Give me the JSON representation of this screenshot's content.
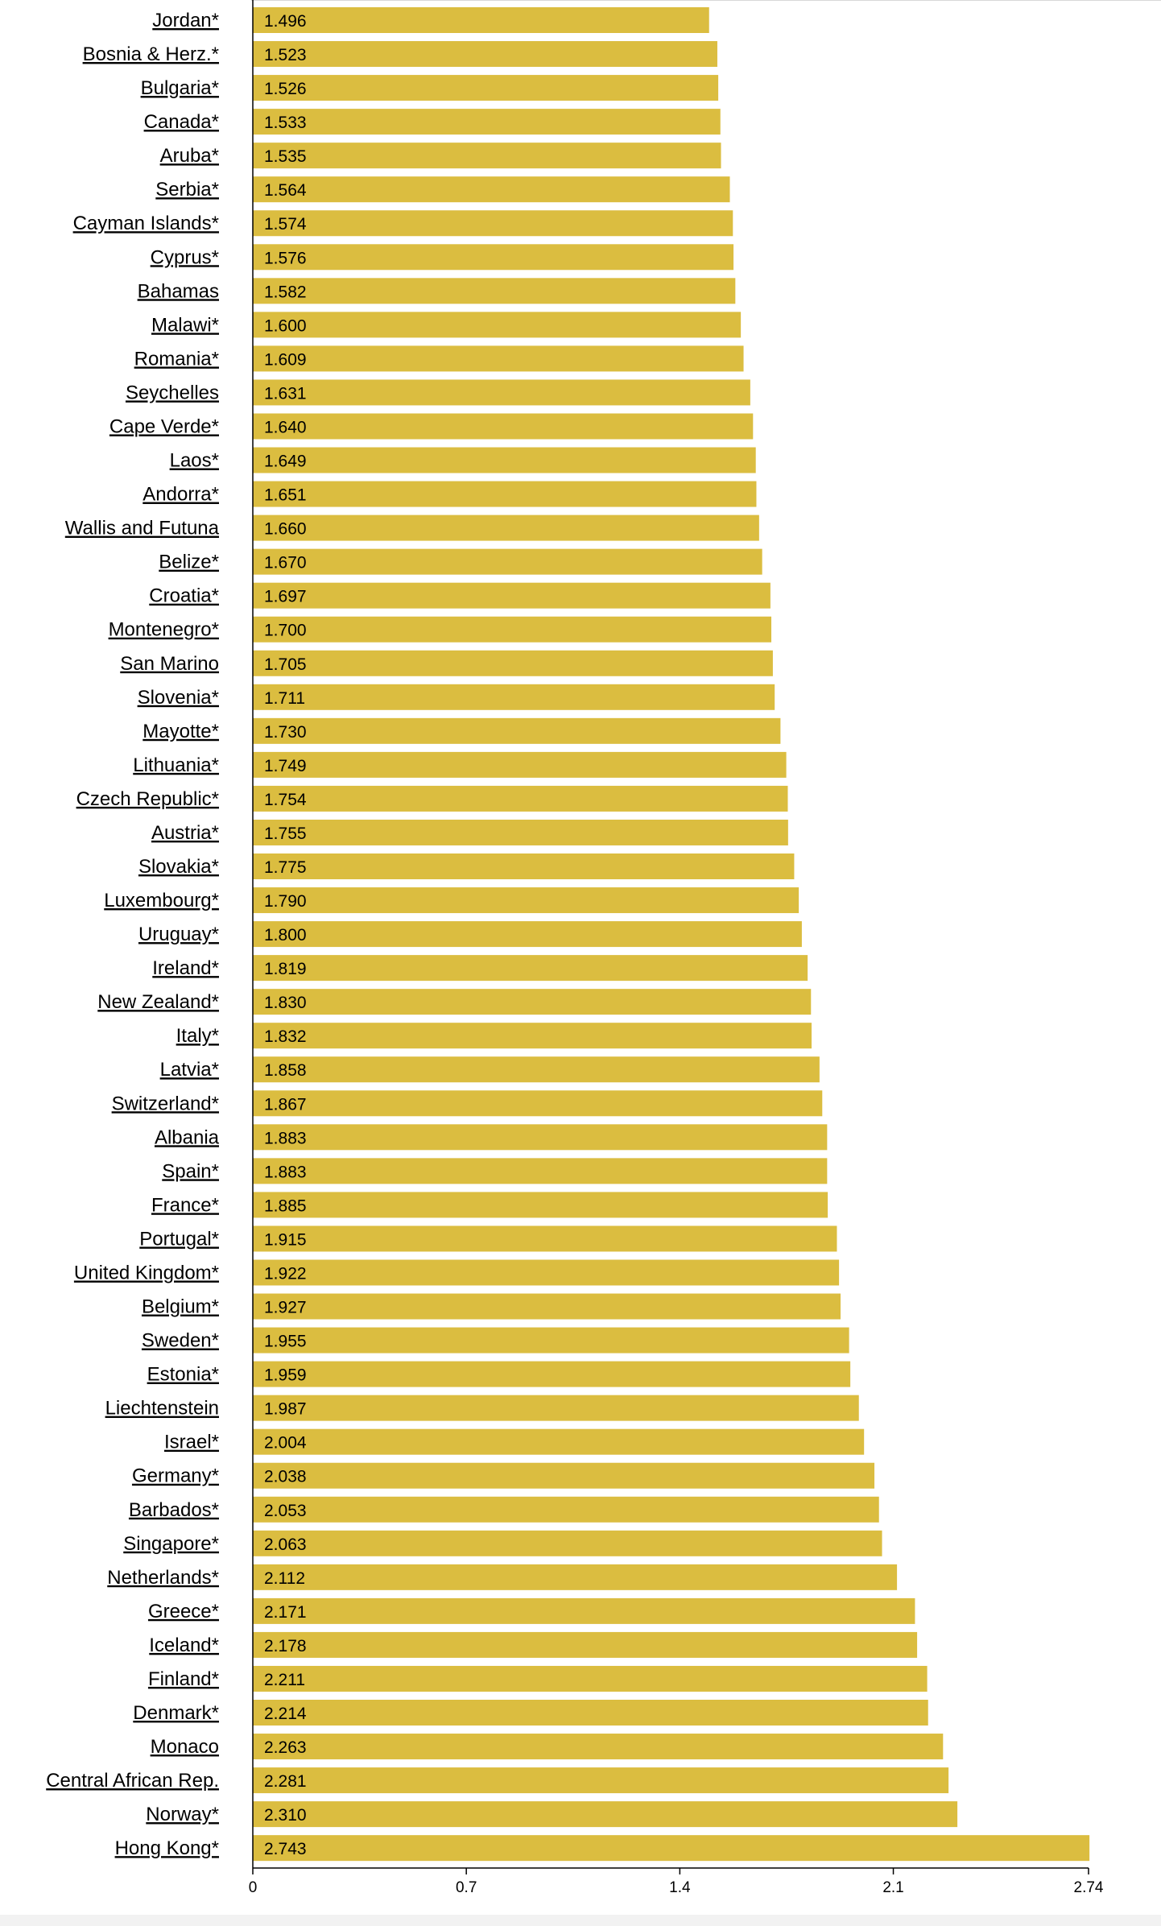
{
  "chart_data": {
    "type": "bar",
    "orientation": "horizontal",
    "title": "",
    "xlabel": "",
    "ylabel": "",
    "bar_color": "#dbbd40",
    "xlim": [
      0,
      2.74
    ],
    "xticks": [
      0,
      0.7,
      1.4,
      2.1,
      2.74
    ],
    "xtick_labels": [
      "0",
      "0.7",
      "1.4",
      "2.1",
      "2.74"
    ],
    "categories": [
      "Jordan*",
      "Bosnia & Herz.*",
      "Bulgaria*",
      "Canada*",
      "Aruba*",
      "Serbia*",
      "Cayman Islands*",
      "Cyprus*",
      "Bahamas ",
      "Malawi*",
      "Romania*",
      "Seychelles ",
      "Cape Verde*",
      "Laos*",
      "Andorra*",
      "Wallis and Futuna ",
      "Belize*",
      "Croatia*",
      "Montenegro*",
      "San Marino ",
      "Slovenia*",
      "Mayotte*",
      "Lithuania*",
      "Czech Republic*",
      "Austria*",
      "Slovakia*",
      "Luxembourg*",
      "Uruguay*",
      "Ireland*",
      "New Zealand*",
      "Italy*",
      "Latvia*",
      "Switzerland*",
      "Albania ",
      "Spain*",
      "France*",
      "Portugal*",
      "United Kingdom*",
      "Belgium*",
      "Sweden*",
      "Estonia*",
      "Liechtenstein ",
      "Israel*",
      "Germany*",
      "Barbados*",
      "Singapore*",
      "Netherlands*",
      "Greece*",
      "Iceland*",
      "Finland*",
      "Denmark*",
      "Monaco ",
      "Central African Rep. ",
      "Norway*",
      "Hong Kong*"
    ],
    "values": [
      1.496,
      1.523,
      1.526,
      1.533,
      1.535,
      1.564,
      1.574,
      1.576,
      1.582,
      1.6,
      1.609,
      1.631,
      1.64,
      1.649,
      1.651,
      1.66,
      1.67,
      1.697,
      1.7,
      1.705,
      1.711,
      1.73,
      1.749,
      1.754,
      1.755,
      1.775,
      1.79,
      1.8,
      1.819,
      1.83,
      1.832,
      1.858,
      1.867,
      1.883,
      1.883,
      1.885,
      1.915,
      1.922,
      1.927,
      1.955,
      1.959,
      1.987,
      2.004,
      2.038,
      2.053,
      2.063,
      2.112,
      2.171,
      2.178,
      2.211,
      2.214,
      2.263,
      2.281,
      2.31,
      2.743
    ],
    "value_labels": [
      "1.496",
      "1.523",
      "1.526",
      "1.533",
      "1.535",
      "1.564",
      "1.574",
      "1.576",
      "1.582",
      "1.600",
      "1.609",
      "1.631",
      "1.640",
      "1.649",
      "1.651",
      "1.660",
      "1.670",
      "1.697",
      "1.700",
      "1.705",
      "1.711",
      "1.730",
      "1.749",
      "1.754",
      "1.755",
      "1.775",
      "1.790",
      "1.800",
      "1.819",
      "1.830",
      "1.832",
      "1.858",
      "1.867",
      "1.883",
      "1.883",
      "1.885",
      "1.915",
      "1.922",
      "1.927",
      "1.955",
      "1.959",
      "1.987",
      "2.004",
      "2.038",
      "2.053",
      "2.063",
      "2.112",
      "2.171",
      "2.178",
      "2.211",
      "2.214",
      "2.263",
      "2.281",
      "2.310",
      "2.743"
    ],
    "grid": false,
    "legend": "none"
  }
}
